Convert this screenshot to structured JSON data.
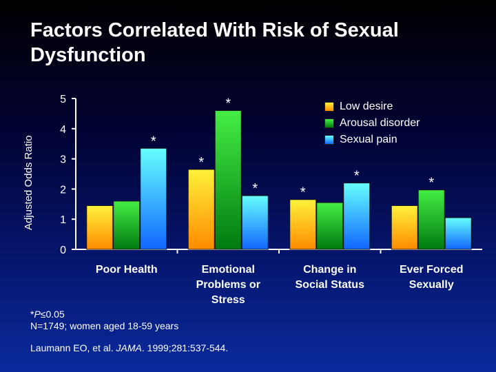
{
  "chart_data": {
    "type": "bar",
    "title": "Factors Correlated With Risk of Sexual Dysfunction",
    "ylabel": "Adjusted Odds Ratio",
    "ylim": [
      0,
      5
    ],
    "yticks": [
      "0",
      "1",
      "2",
      "3",
      "4",
      "5"
    ],
    "categories": [
      [
        "Poor Health"
      ],
      [
        "Emotional",
        "Problems or",
        "Stress"
      ],
      [
        "Change in",
        "Social Status"
      ],
      [
        "Ever Forced",
        "Sexually"
      ]
    ],
    "series": [
      {
        "name": "Low desire",
        "color": "#ffcc00",
        "values": [
          1.45,
          2.65,
          1.65,
          1.45
        ],
        "significant": [
          false,
          true,
          true,
          false
        ]
      },
      {
        "name": "Arousal disorder",
        "color": "#22bb22",
        "values": [
          1.6,
          4.6,
          1.55,
          1.97
        ],
        "significant": [
          false,
          true,
          false,
          true
        ]
      },
      {
        "name": "Sexual pain",
        "color": "#33ccff",
        "values": [
          3.35,
          1.78,
          2.2,
          1.05
        ],
        "significant": [
          true,
          true,
          true,
          false
        ]
      }
    ],
    "sig_marker": "*",
    "legend_position": "top-right",
    "grid": false
  },
  "footnotes": {
    "sig_prefix": "*",
    "sig_p": "P",
    "sig_rest": "≤0.05",
    "sample": "N=1749; women aged 18-59 years"
  },
  "reference": {
    "authors": "Laumann EO, et al. ",
    "journal": "JAMA",
    "details": ". 1999;281:537-544."
  }
}
